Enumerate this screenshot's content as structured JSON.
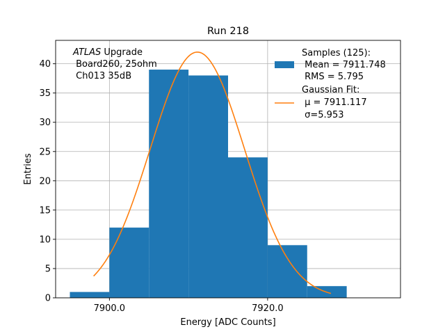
{
  "chart_data": {
    "type": "bar",
    "title": "Run 218",
    "xlabel": "Energy [ADC Counts]",
    "ylabel": "Entries",
    "xlim": [
      7893.2,
      7936.8
    ],
    "ylim": [
      0,
      44
    ],
    "grid": true,
    "x_ticks": [
      7900,
      7920
    ],
    "x_tick_labels": [
      "7900.0",
      "7920.0"
    ],
    "y_ticks": [
      0,
      5,
      10,
      15,
      20,
      25,
      30,
      35,
      40
    ],
    "y_tick_labels": [
      "0",
      "5",
      "10",
      "15",
      "20",
      "25",
      "30",
      "35",
      "40"
    ],
    "annotation": {
      "italic_prefix": "ATLAS",
      "line1_rest": " Upgrade",
      "line2": " Board260, 25ohm",
      "line3": " Ch013 35dB"
    },
    "series": [
      {
        "name": "Samples (125):",
        "kind": "histogram",
        "color": "#1f77b4",
        "bin_edges": [
          7895,
          7900,
          7905,
          7910,
          7915,
          7920,
          7925,
          7930,
          7935
        ],
        "counts": [
          1,
          12,
          39,
          38,
          24,
          9,
          2,
          0
        ],
        "legend_lines": [
          " Mean = 7911.748",
          " RMS = 5.795"
        ]
      },
      {
        "name": "Gaussian Fit:",
        "kind": "curve",
        "color": "#ff7f0e",
        "mu": 7911.117,
        "sigma": 5.953,
        "amplitude": 42,
        "x_range": [
          7898,
          7928
        ],
        "legend_lines": [
          " μ = 7911.117",
          " σ=5.953"
        ]
      }
    ]
  }
}
